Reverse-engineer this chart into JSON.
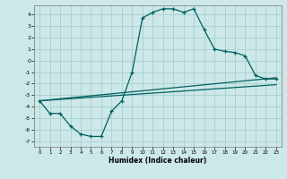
{
  "xlabel": "Humidex (Indice chaleur)",
  "background_color": "#cce8e8",
  "grid_color": "#a8d0d0",
  "line_color": "#006060",
  "xlim": [
    -0.5,
    23.5
  ],
  "ylim": [
    -7.5,
    4.8
  ],
  "xticks": [
    0,
    1,
    2,
    3,
    4,
    5,
    6,
    7,
    8,
    9,
    10,
    11,
    12,
    13,
    14,
    15,
    16,
    17,
    18,
    19,
    20,
    21,
    22,
    23
  ],
  "yticks": [
    -7,
    -6,
    -5,
    -4,
    -3,
    -2,
    -1,
    0,
    1,
    2,
    3,
    4
  ],
  "curve_x": [
    0,
    1,
    2,
    3,
    4,
    5,
    6,
    7,
    8,
    9,
    10,
    11,
    12,
    13,
    14,
    15,
    16,
    17,
    18,
    19,
    20,
    21,
    22,
    23
  ],
  "curve_y": [
    -3.5,
    -4.6,
    -4.6,
    -5.7,
    -6.4,
    -6.6,
    -6.6,
    -4.4,
    -3.5,
    -1.0,
    3.7,
    4.2,
    4.5,
    4.5,
    4.2,
    4.5,
    2.7,
    1.0,
    0.8,
    0.7,
    0.4,
    -1.3,
    -1.6,
    -1.6
  ],
  "line1_x": [
    0,
    23
  ],
  "line1_y": [
    -3.5,
    -1.5
  ],
  "line2_x": [
    0,
    23
  ],
  "line2_y": [
    -3.5,
    -2.1
  ]
}
